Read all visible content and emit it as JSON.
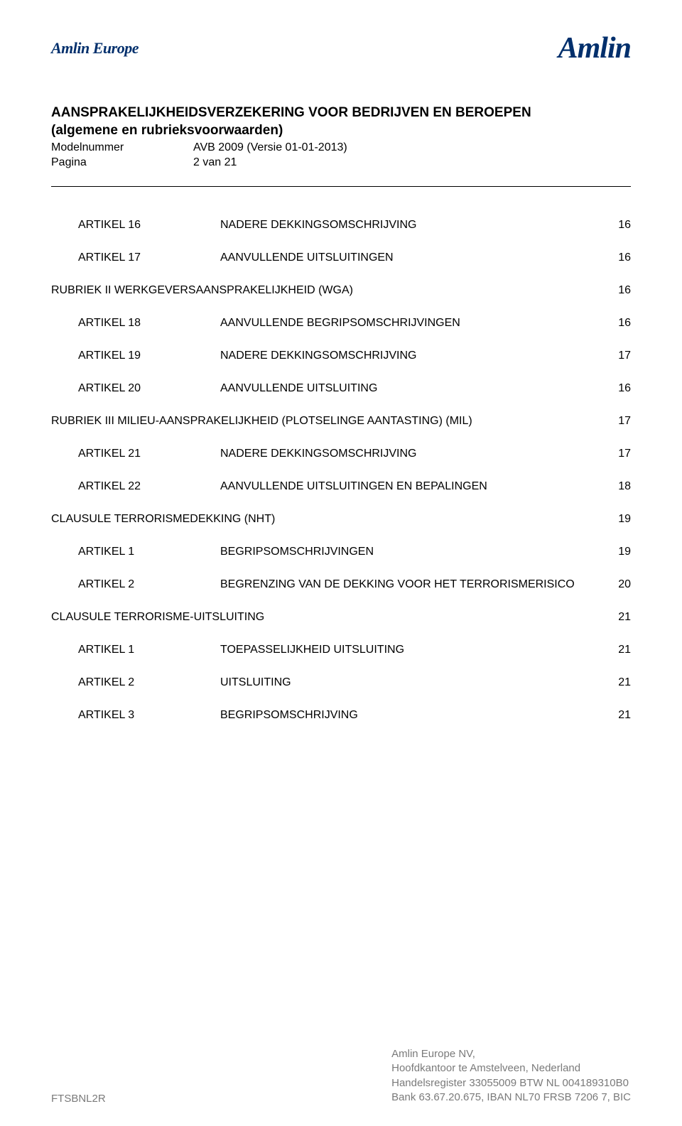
{
  "header": {
    "logo_left": "Amlin Europe",
    "logo_right": "Amlin"
  },
  "doc": {
    "title": "AANSPRAKELIJKHEIDSVERZEKERING VOOR BEDRIJVEN EN BEROEPEN",
    "subtitle": "(algemene en rubrieksvoorwaarden)",
    "model_label": "Modelnummer",
    "model_value": "AVB 2009 (Versie 01-01-2013)",
    "page_label": "Pagina",
    "page_value": "2 van 21"
  },
  "toc": [
    {
      "kind": "item",
      "col1": "ARTIKEL 16",
      "col2": "NADERE DEKKINGSOMSCHRIJVING",
      "page": "16",
      "indent": true
    },
    {
      "kind": "item",
      "col1": "ARTIKEL 17",
      "col2": "AANVULLENDE UITSLUITINGEN",
      "page": "16",
      "indent": true
    },
    {
      "kind": "section",
      "text": "RUBRIEK II WERKGEVERSAANSPRAKELIJKHEID (WGA)",
      "page": "16"
    },
    {
      "kind": "item",
      "col1": "ARTIKEL 18",
      "col2": "AANVULLENDE BEGRIPSOMSCHRIJVINGEN",
      "page": "16",
      "indent": true
    },
    {
      "kind": "item",
      "col1": "ARTIKEL 19",
      "col2": "NADERE DEKKINGSOMSCHRIJVING",
      "page": "17",
      "indent": true
    },
    {
      "kind": "item",
      "col1": "ARTIKEL 20",
      "col2": "AANVULLENDE UITSLUITING",
      "page": "16",
      "indent": true
    },
    {
      "kind": "section",
      "text": "RUBRIEK III MILIEU-AANSPRAKELIJKHEID (PLOTSELINGE AANTASTING) (MIL)",
      "page": "17"
    },
    {
      "kind": "item",
      "col1": "ARTIKEL 21",
      "col2": "NADERE DEKKINGSOMSCHRIJVING",
      "page": "17",
      "indent": true
    },
    {
      "kind": "item",
      "col1": "ARTIKEL 22",
      "col2": "AANVULLENDE UITSLUITINGEN EN BEPALINGEN",
      "page": "18",
      "indent": true
    },
    {
      "kind": "section",
      "text": "CLAUSULE TERRORISMEDEKKING (NHT)",
      "page": "19"
    },
    {
      "kind": "item",
      "col1": "ARTIKEL  1",
      "col2": "BEGRIPSOMSCHRIJVINGEN",
      "page": "19",
      "indent": true
    },
    {
      "kind": "item",
      "col1": "ARTIKEL  2",
      "col2": "BEGRENZING VAN DE DEKKING VOOR HET TERRORISMERISICO",
      "page": "20",
      "indent": true
    },
    {
      "kind": "section",
      "text": "CLAUSULE TERRORISME-UITSLUITING",
      "page": "21"
    },
    {
      "kind": "item",
      "col1": "ARTIKEL  1",
      "col2": "TOEPASSELIJKHEID UITSLUITING",
      "page": "21",
      "indent": true
    },
    {
      "kind": "item",
      "col1": "ARTIKEL  2",
      "col2": "UITSLUITING",
      "page": "21",
      "indent": true
    },
    {
      "kind": "item",
      "col1": "ARTIKEL  3",
      "col2": "BEGRIPSOMSCHRIJVING",
      "page": "21",
      "indent": true
    }
  ],
  "footer": {
    "left": "FTSBNL2R",
    "right_line1": "Amlin Europe NV,",
    "right_line2": "Hoofdkantoor te Amstelveen, Nederland",
    "right_line3": "Handelsregister 33055009 BTW NL 004189310B0",
    "right_line4": "Bank 63.67.20.675, IBAN NL70 FRSB 7206 7, BIC"
  }
}
